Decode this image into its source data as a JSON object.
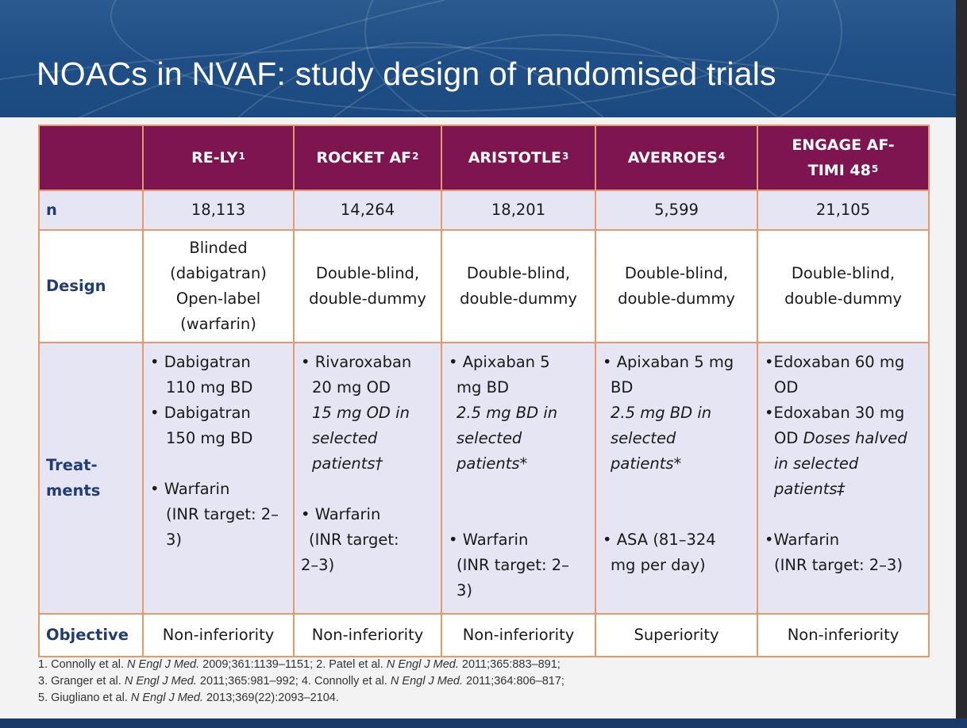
{
  "title": "NOACs in NVAF: study design of randomised trials",
  "table": {
    "columns": [
      {
        "name": "RE-LY",
        "sup": "1"
      },
      {
        "name": "ROCKET AF",
        "sup": "2"
      },
      {
        "name": "ARISTOTLE",
        "sup": "3"
      },
      {
        "name": "AVERROES",
        "sup": "4"
      },
      {
        "name_line1": "ENGAGE AF-",
        "name_line2": "TIMI 48",
        "sup": "5"
      }
    ],
    "row_labels": {
      "n": "n",
      "design": "Design",
      "treatments_l1": "Treat-",
      "treatments_l2": "ments",
      "objective": "Objective"
    },
    "n": [
      "18,113",
      "14,264",
      "18,201",
      "5,599",
      "21,105"
    ],
    "design": {
      "relly": [
        "Blinded",
        "(dabigatran)",
        "Open-label",
        "(warfarin)"
      ],
      "rocket": [
        "Double-blind,",
        "double-dummy"
      ],
      "aristotle": [
        "Double-blind,",
        "double-dummy"
      ],
      "averroes": [
        "Double-blind,",
        "double-dummy"
      ],
      "engage": [
        "Double-blind,",
        "double-dummy"
      ]
    },
    "treatments": {
      "relly": [
        "• Dabigatran",
        "110 mg BD",
        "• Dabigatran",
        "150 mg BD",
        "• Warfarin",
        "(INR target: 2–",
        "3)"
      ],
      "rocket": [
        "• Rivaroxaban",
        "20 mg OD",
        "15 mg OD in",
        "selected",
        "patients†",
        "• Warfarin",
        "(INR target:",
        "2–3)"
      ],
      "aristotle": [
        "• Apixaban 5",
        "mg BD",
        "2.5 mg BD in",
        "selected",
        "patients*",
        "• Warfarin",
        "(INR target: 2–",
        "3)"
      ],
      "averroes": [
        "• Apixaban 5 mg",
        "BD",
        "2.5 mg BD in",
        "selected",
        "patients*",
        "• ASA (81–324",
        "mg per day)"
      ],
      "engage": [
        "•Edoxaban 60 mg",
        "OD",
        "•Edoxaban 30 mg",
        "OD ",
        "Doses halved",
        "in selected",
        "patients‡",
        "•Warfarin",
        "(INR target: 2–3)"
      ]
    },
    "objective": [
      "Non-inferiority",
      "Non-inferiority",
      "Non-inferiority",
      "Superiority",
      "Non-inferiority"
    ]
  },
  "references": [
    {
      "pre": "1. Connolly et al. ",
      "journal": "N Engl J Med.",
      "post": " 2009;361:1139–1151; 2. Patel et al. ",
      "journal2": "N Engl J Med.",
      "post2": " 2011;365:883–891;"
    },
    {
      "pre": "3. Granger et al. ",
      "journal": "N Engl J Med.",
      "post": " 2011;365:981–992; 4. Connolly et al. ",
      "journal2": "N Engl J Med.",
      "post2": " 2011;364:806–817;"
    },
    {
      "pre": "5. Giugliano et al. ",
      "journal": "N Engl J Med.",
      "post": " 2013;369(22):2093–2104."
    }
  ],
  "colors": {
    "header_band": "#1f4f86",
    "table_header": "#7e1551",
    "row_label": "#1f3d72",
    "grid": "#e8986b",
    "shaded_row": "#e6e5f4"
  }
}
